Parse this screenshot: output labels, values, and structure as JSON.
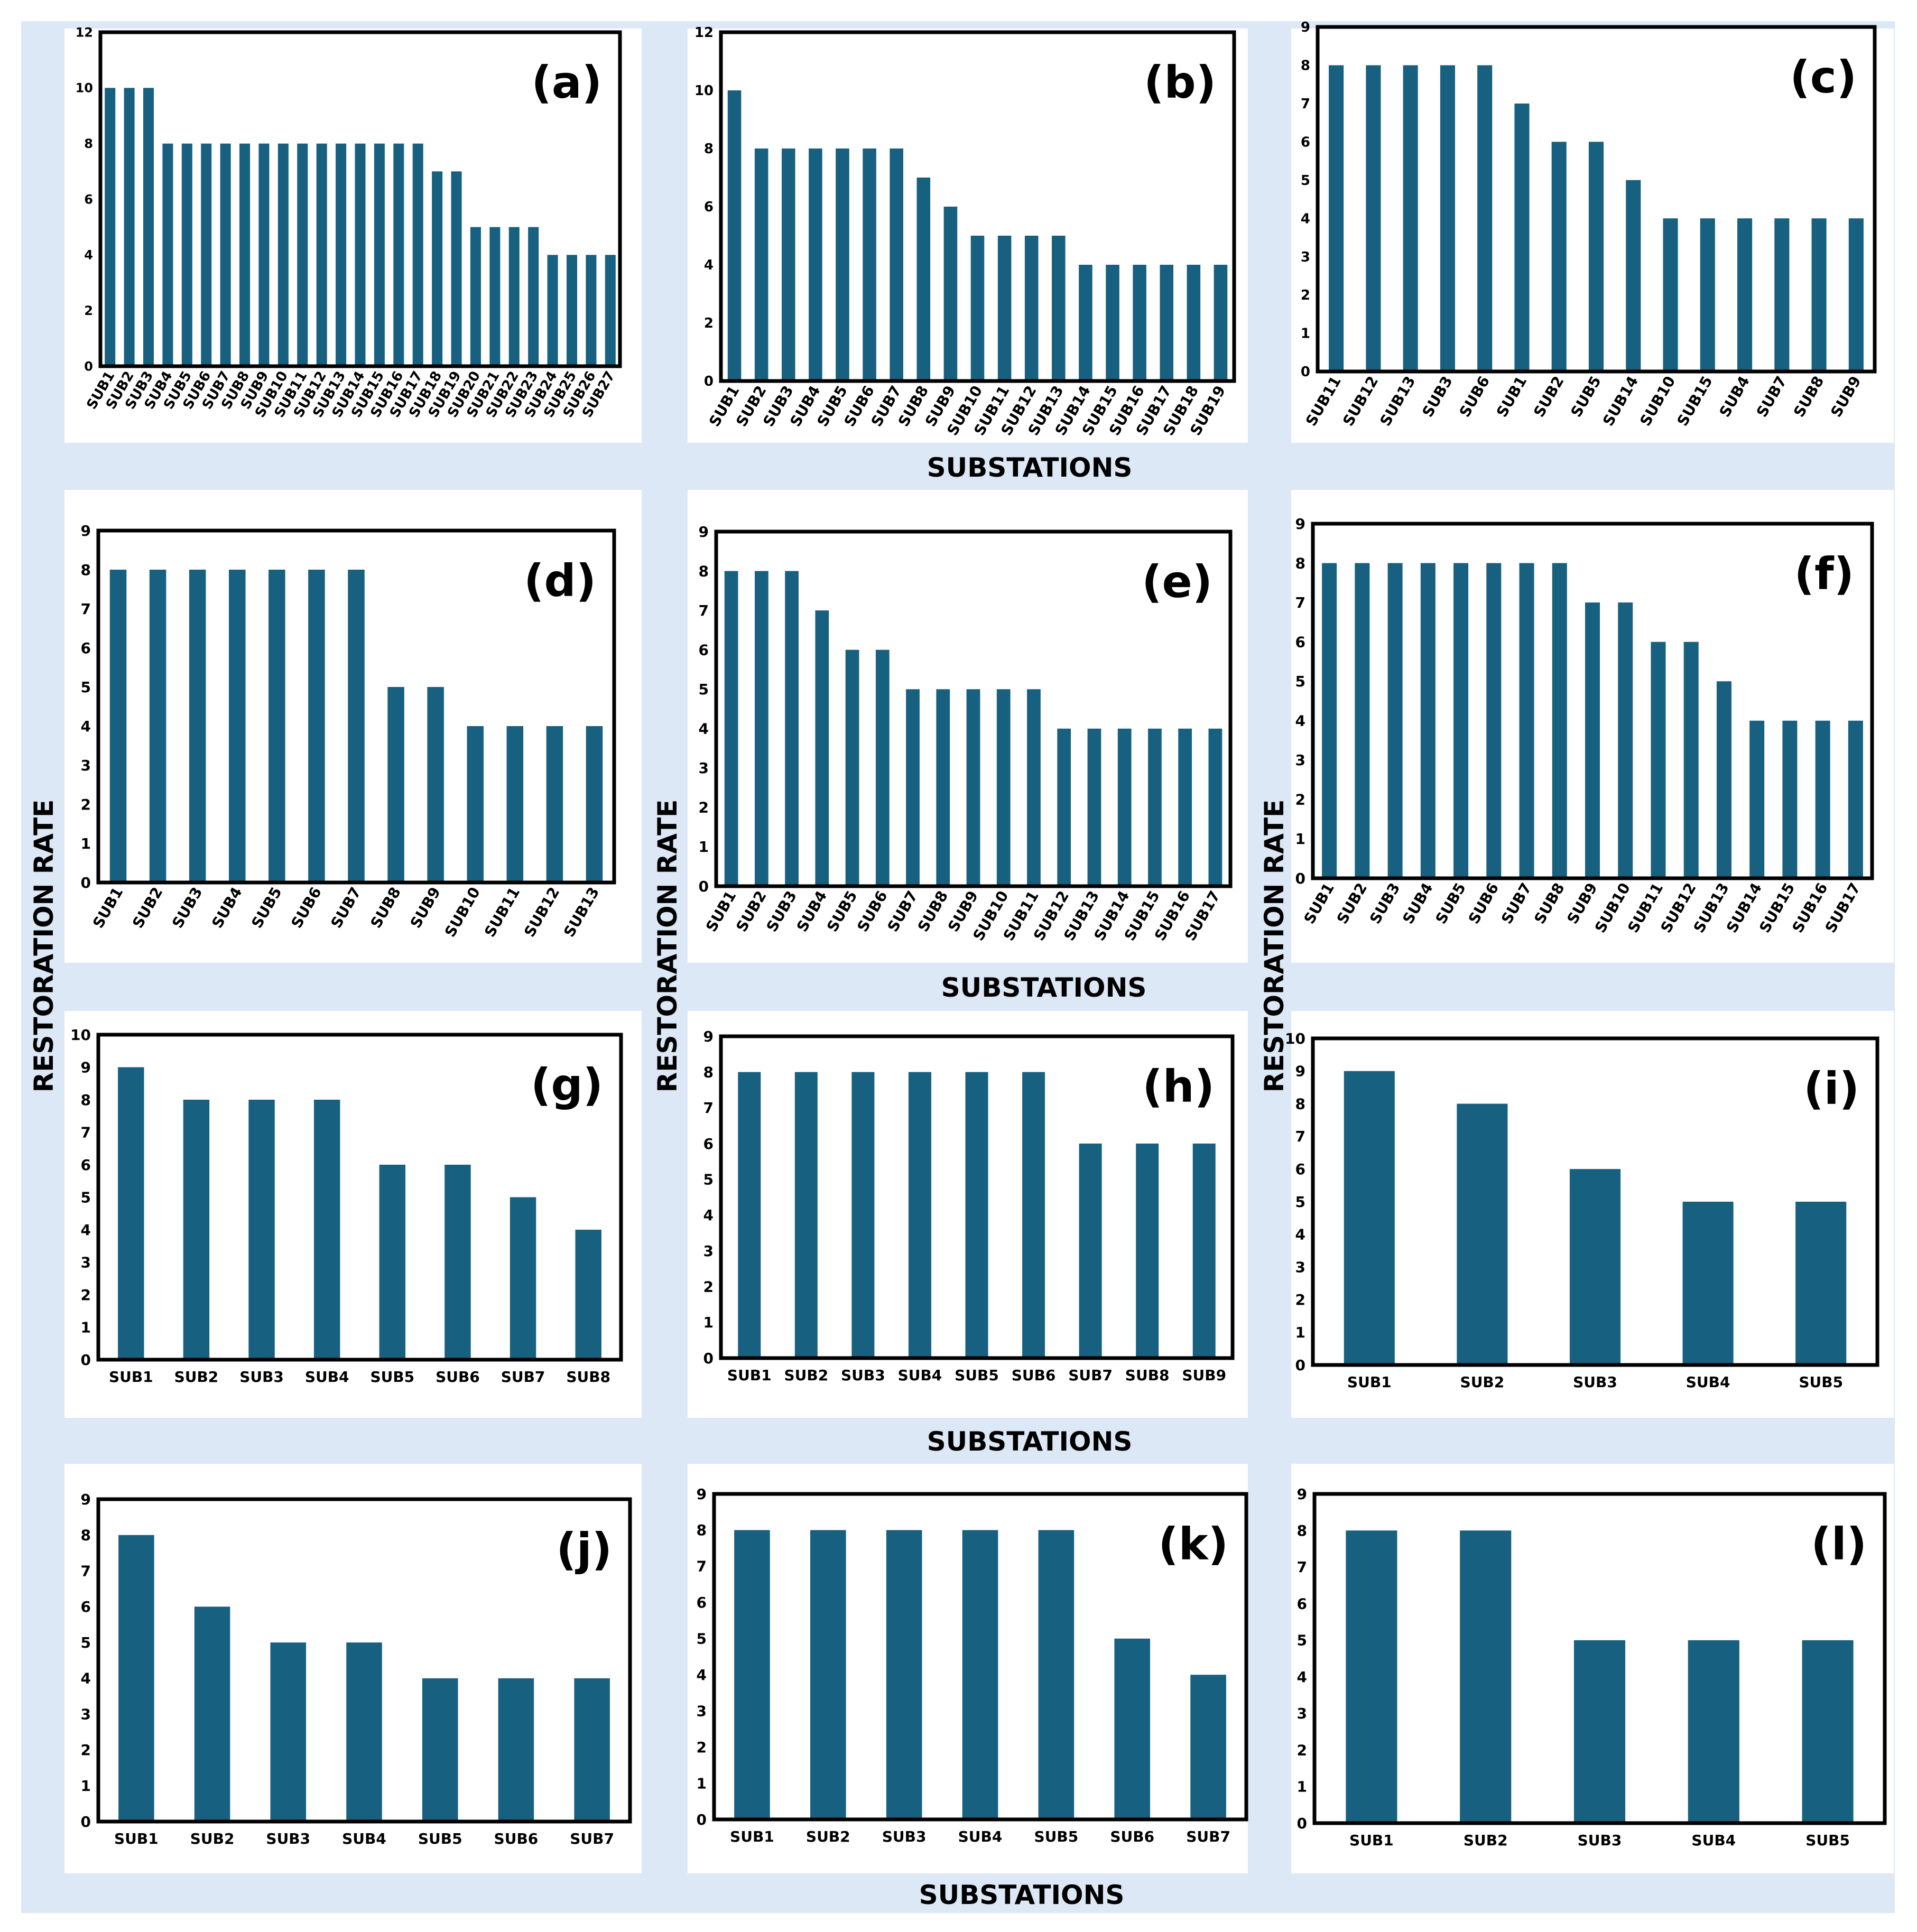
{
  "figure": {
    "x_axis_title": "SUBSTATIONS",
    "y_axis_title": "RESTORATION RATE"
  },
  "colors": {
    "bar": "#17607f",
    "background_band": "#dce8f5",
    "panel_bg": "#ffffff",
    "frame": "#000000"
  },
  "chart_data": [
    {
      "type": "bar",
      "label": "(a)",
      "ylim": [
        0,
        12
      ],
      "yticks": [
        0,
        2,
        4,
        6,
        8,
        10,
        12
      ],
      "categories": [
        "SUB1",
        "SUB2",
        "SUB3",
        "SUB4",
        "SUB5",
        "SUB6",
        "SUB7",
        "SUB8",
        "SUB9",
        "SUB10",
        "SUB11",
        "SUB12",
        "SUB13",
        "SUB14",
        "SUB15",
        "SUB16",
        "SUB17",
        "SUB18",
        "SUB19",
        "SUB20",
        "SUB21",
        "SUB22",
        "SUB23",
        "SUB24",
        "SUB25",
        "SUB26",
        "SUB27"
      ],
      "values": [
        10,
        10,
        10,
        8,
        8,
        8,
        8,
        8,
        8,
        8,
        8,
        8,
        8,
        8,
        8,
        8,
        8,
        7,
        7,
        5,
        5,
        5,
        5,
        4,
        4,
        4,
        4
      ]
    },
    {
      "type": "bar",
      "label": "(b)",
      "ylim": [
        0,
        12
      ],
      "yticks": [
        0,
        2,
        4,
        6,
        8,
        10,
        12
      ],
      "categories": [
        "SUB1",
        "SUB2",
        "SUB3",
        "SUB4",
        "SUB5",
        "SUB6",
        "SUB7",
        "SUB8",
        "SUB9",
        "SUB10",
        "SUB11",
        "SUB12",
        "SUB13",
        "SUB14",
        "SUB15",
        "SUB16",
        "SUB17",
        "SUB18",
        "SUB19"
      ],
      "values": [
        10,
        8,
        8,
        8,
        8,
        8,
        8,
        7,
        6,
        5,
        5,
        5,
        5,
        4,
        4,
        4,
        4,
        4,
        4
      ]
    },
    {
      "type": "bar",
      "label": "(c)",
      "ylim": [
        0,
        9
      ],
      "yticks": [
        0,
        1,
        2,
        3,
        4,
        5,
        6,
        7,
        8,
        9
      ],
      "categories": [
        "SUB11",
        "SUB12",
        "SUB13",
        "SUB3",
        "SUB6",
        "SUB1",
        "SUB2",
        "SUB5",
        "SUB14",
        "SUB10",
        "SUB15",
        "SUB4",
        "SUB7",
        "SUB8",
        "SUB9"
      ],
      "values": [
        8,
        8,
        8,
        8,
        8,
        7,
        6,
        6,
        5,
        4,
        4,
        4,
        4,
        4,
        4
      ]
    },
    {
      "type": "bar",
      "label": "(d)",
      "ylim": [
        0,
        9
      ],
      "yticks": [
        0,
        1,
        2,
        3,
        4,
        5,
        6,
        7,
        8,
        9
      ],
      "categories": [
        "SUB1",
        "SUB2",
        "SUB3",
        "SUB4",
        "SUB5",
        "SUB6",
        "SUB7",
        "SUB8",
        "SUB9",
        "SUB10",
        "SUB11",
        "SUB12",
        "SUB13"
      ],
      "values": [
        8,
        8,
        8,
        8,
        8,
        8,
        8,
        5,
        5,
        4,
        4,
        4,
        4
      ]
    },
    {
      "type": "bar",
      "label": "(e)",
      "ylim": [
        0,
        9
      ],
      "yticks": [
        0,
        1,
        2,
        3,
        4,
        5,
        6,
        7,
        8,
        9
      ],
      "categories": [
        "SUB1",
        "SUB2",
        "SUB3",
        "SUB4",
        "SUB5",
        "SUB6",
        "SUB7",
        "SUB8",
        "SUB9",
        "SUB10",
        "SUB11",
        "SUB12",
        "SUB13",
        "SUB14",
        "SUB15",
        "SUB16",
        "SUB17"
      ],
      "values": [
        8,
        8,
        8,
        7,
        6,
        6,
        5,
        5,
        5,
        5,
        5,
        4,
        4,
        4,
        4,
        4,
        4
      ]
    },
    {
      "type": "bar",
      "label": "(f)",
      "ylim": [
        0,
        9
      ],
      "yticks": [
        0,
        1,
        2,
        3,
        4,
        5,
        6,
        7,
        8,
        9
      ],
      "categories": [
        "SUB1",
        "SUB2",
        "SUB3",
        "SUB4",
        "SUB5",
        "SUB6",
        "SUB7",
        "SUB8",
        "SUB9",
        "SUB10",
        "SUB11",
        "SUB12",
        "SUB13",
        "SUB14",
        "SUB15",
        "SUB16",
        "SUB17"
      ],
      "values": [
        8,
        8,
        8,
        8,
        8,
        8,
        8,
        8,
        7,
        7,
        6,
        6,
        5,
        4,
        4,
        4,
        4
      ]
    },
    {
      "type": "bar",
      "label": "(g)",
      "ylim": [
        0,
        10
      ],
      "yticks": [
        0,
        1,
        2,
        3,
        4,
        5,
        6,
        7,
        8,
        9,
        10
      ],
      "categories": [
        "SUB1",
        "SUB2",
        "SUB3",
        "SUB4",
        "SUB5",
        "SUB6",
        "SUB7",
        "SUB8"
      ],
      "values": [
        9,
        8,
        8,
        8,
        6,
        6,
        5,
        4
      ]
    },
    {
      "type": "bar",
      "label": "(h)",
      "ylim": [
        0,
        9
      ],
      "yticks": [
        0,
        1,
        2,
        3,
        4,
        5,
        6,
        7,
        8,
        9
      ],
      "categories": [
        "SUB1",
        "SUB2",
        "SUB3",
        "SUB4",
        "SUB5",
        "SUB6",
        "SUB7",
        "SUB8",
        "SUB9"
      ],
      "values": [
        8,
        8,
        8,
        8,
        8,
        8,
        6,
        6,
        6
      ]
    },
    {
      "type": "bar",
      "label": "(i)",
      "ylim": [
        0,
        10
      ],
      "yticks": [
        0,
        1,
        2,
        3,
        4,
        5,
        6,
        7,
        8,
        9,
        10
      ],
      "categories": [
        "SUB1",
        "SUB2",
        "SUB3",
        "SUB4",
        "SUB5"
      ],
      "values": [
        9,
        8,
        6,
        5,
        5
      ]
    },
    {
      "type": "bar",
      "label": "(j)",
      "ylim": [
        0,
        9
      ],
      "yticks": [
        0,
        1,
        2,
        3,
        4,
        5,
        6,
        7,
        8,
        9
      ],
      "categories": [
        "SUB1",
        "SUB2",
        "SUB3",
        "SUB4",
        "SUB5",
        "SUB6",
        "SUB7"
      ],
      "values": [
        8,
        6,
        5,
        5,
        4,
        4,
        4
      ]
    },
    {
      "type": "bar",
      "label": "(k)",
      "ylim": [
        0,
        9
      ],
      "yticks": [
        0,
        1,
        2,
        3,
        4,
        5,
        6,
        7,
        8,
        9
      ],
      "categories": [
        "SUB1",
        "SUB2",
        "SUB3",
        "SUB4",
        "SUB5",
        "SUB6",
        "SUB7"
      ],
      "values": [
        8,
        8,
        8,
        8,
        8,
        5,
        4
      ]
    },
    {
      "type": "bar",
      "label": "(l)",
      "ylim": [
        0,
        9
      ],
      "yticks": [
        0,
        1,
        2,
        3,
        4,
        5,
        6,
        7,
        8,
        9
      ],
      "categories": [
        "SUB1",
        "SUB2",
        "SUB3",
        "SUB4",
        "SUB5"
      ],
      "values": [
        8,
        8,
        5,
        5,
        5
      ]
    }
  ]
}
